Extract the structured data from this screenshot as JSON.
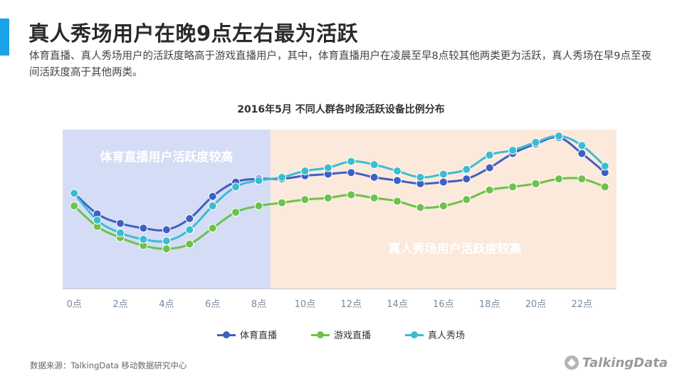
{
  "header": {
    "title": "真人秀场用户在晚9点左右最为活跃",
    "subtitle": "体育直播、真人秀场用户的活跃度略高于游戏直播用户，其中，体育直播用户在凌晨至早8点较其他两类更为活跃，真人秀场在早9点至夜间活跃度高于其他两类。",
    "accent_color": "#1aa3e8"
  },
  "chart_data": {
    "type": "line",
    "title": "2016年5月 不同人群各时段活跃设备比例分布",
    "x": [
      0,
      1,
      2,
      3,
      4,
      5,
      6,
      7,
      8,
      9,
      10,
      11,
      12,
      13,
      14,
      15,
      16,
      17,
      18,
      19,
      20,
      21,
      22,
      23
    ],
    "x_tick_labels": [
      "0点",
      "2点",
      "4点",
      "6点",
      "8点",
      "10点",
      "12点",
      "14点",
      "16点",
      "18点",
      "20点",
      "22点"
    ],
    "x_tick_values": [
      0,
      2,
      4,
      6,
      8,
      10,
      12,
      14,
      16,
      18,
      20,
      22
    ],
    "xlabel": "",
    "ylabel": "",
    "y_axis_shown": false,
    "ylim": [
      0,
      100
    ],
    "grid": false,
    "legend_position": "bottom",
    "series": [
      {
        "name": "体育直播",
        "color": "#3f5fc2",
        "values": [
          60,
          47,
          41,
          38,
          37,
          44,
          58,
          67,
          69,
          69,
          71,
          72,
          73,
          70,
          68,
          66,
          67,
          69,
          76,
          85,
          91,
          95,
          85,
          73
        ]
      },
      {
        "name": "游戏直播",
        "color": "#6cc24a",
        "values": [
          52,
          39,
          32,
          27,
          25,
          28,
          38,
          48,
          52,
          54,
          56,
          57,
          59,
          57,
          55,
          51,
          52,
          56,
          62,
          64,
          66,
          69,
          69,
          64
        ]
      },
      {
        "name": "真人秀场",
        "color": "#3bbcd0",
        "values": [
          60,
          43,
          35,
          31,
          30,
          37,
          52,
          64,
          68,
          70,
          74,
          76,
          80,
          78,
          74,
          70,
          72,
          75,
          84,
          87,
          92,
          96,
          90,
          77
        ]
      }
    ],
    "annotations": [
      {
        "text": "体育直播用户活跃度较高",
        "x_from": -0.5,
        "x_to": 8.5,
        "fill": "#d5dcf5"
      },
      {
        "text": "真人秀场用户活跃度较高",
        "x_from": 8.5,
        "x_to": 23.5,
        "fill": "#fbe9dc"
      }
    ]
  },
  "footer": {
    "source": "数据来源：TalkingData 移动数据研究中心",
    "logo_text": "TalkingData"
  }
}
